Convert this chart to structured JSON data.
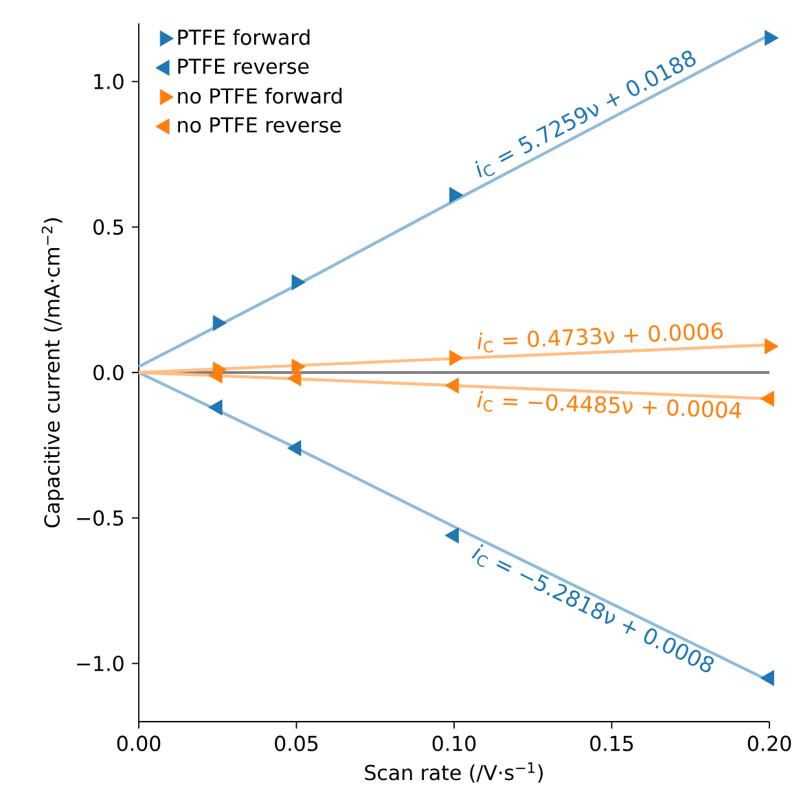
{
  "chart_data": {
    "type": "scatter",
    "xlabel": "Scan rate (/V·s$^{−1}$)",
    "ylabel": "Capacitive current (/mA·cm$^{−2}$)",
    "x": [
      0,
      0.025,
      0.05,
      0.1,
      0.2
    ],
    "series": [
      {
        "name": "PTFE forward",
        "color": "#1f77b4",
        "marker": "triangle-right",
        "values": [
          null,
          0.17,
          0.31,
          0.61,
          1.15
        ]
      },
      {
        "name": "PTFE reverse",
        "color": "#1f77b4",
        "marker": "triangle-left",
        "values": [
          null,
          -0.12,
          -0.26,
          -0.56,
          -1.05
        ]
      },
      {
        "name": "no PTFE forward",
        "color": "#ff7f0e",
        "marker": "triangle-right",
        "values": [
          null,
          0.01,
          0.02,
          0.05,
          0.09
        ]
      },
      {
        "name": "no PTFE reverse",
        "color": "#ff7f0e",
        "marker": "triangle-left",
        "values": [
          null,
          -0.01,
          -0.02,
          -0.045,
          -0.09
        ]
      },
      {
        "type": "line",
        "color": "#8fbbd9",
        "values": [
          0.02,
          0.16,
          0.3,
          0.59,
          1.16
        ]
      },
      {
        "type": "line",
        "color": "#8fbbd9",
        "values": [
          0,
          -0.13,
          -0.26,
          -0.53,
          -1.06
        ]
      },
      {
        "type": "line",
        "color": "#ffbf86",
        "values": [
          0,
          0.012,
          0.024,
          0.048,
          0.095
        ]
      },
      {
        "type": "line",
        "color": "#ffbf86",
        "values": [
          0,
          -0.011,
          -0.022,
          -0.045,
          -0.09
        ]
      }
    ],
    "annotations": [
      {
        "text": "*i*$_{C}$ = 5.7259ν + 0.0188",
        "x": 0.108,
        "y": 0.637
      },
      {
        "text": "*i*$_{C}$ = −5.2818ν + 0.0008",
        "x": 0.107,
        "y": -0.564
      },
      {
        "text": "*i*$_{C}$ = 0.4733ν + 0.0006",
        "x": 0.106,
        "y": 0.051
      },
      {
        "text": "*i*$_{C}$ = −0.4485ν + 0.0004",
        "x": 0.106,
        "y": -0.047
      }
    ],
    "ref_lines": [
      {
        "axis": "y",
        "value": 0,
        "color": "#808080"
      }
    ],
    "xlim": [
      0,
      0.2
    ],
    "ylim": [
      -1.2,
      1.2
    ],
    "xticks": [
      {
        "value": 0,
        "label": "0.00"
      },
      {
        "value": 0.05,
        "label": "0.05"
      },
      {
        "value": 0.1,
        "label": "0.10"
      },
      {
        "value": 0.15,
        "label": "0.15"
      },
      {
        "value": 0.2,
        "label": "0.20"
      }
    ],
    "yticks": [
      {
        "value": -1,
        "label": "−1.0"
      },
      {
        "value": -0.5,
        "label": "−0.5"
      },
      {
        "value": 0,
        "label": "0.0"
      },
      {
        "value": 0.5,
        "label": "0.5"
      },
      {
        "value": 1,
        "label": "1.0"
      }
    ],
    "legend": "top left",
    "grid": false
  }
}
